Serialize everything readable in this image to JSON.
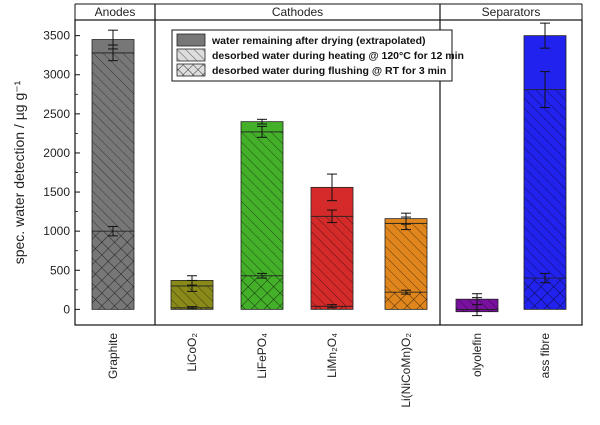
{
  "chart_data": {
    "type": "bar",
    "stacked": true,
    "ylabel": "spec. water detection / µg g⁻¹",
    "ylim": [
      -200,
      3700
    ],
    "yticks": [
      0,
      500,
      1000,
      1500,
      2000,
      2500,
      3000,
      3500
    ],
    "grid": false,
    "legend_position": "top-center",
    "groups": [
      {
        "label": "Anodes",
        "categories": [
          "Graphite"
        ]
      },
      {
        "label": "Cathodes",
        "categories": [
          "LiCoO₂",
          "LiFePO₄",
          "LiMn₂O₄",
          "Li(NiCoMn)O₂"
        ]
      },
      {
        "label": "Separators",
        "categories": [
          "Polyolefin",
          "Glass fibre"
        ]
      }
    ],
    "categories": [
      "Graphite",
      "LiCoO₂",
      "LiFePO₄",
      "LiMn₂O₄",
      "Li(NiCoMn)O₂",
      "Polyolefin",
      "Glass fibre"
    ],
    "category_labels_shown": [
      "Graphite",
      "LiCoO₂",
      "LiFePO₄",
      "LiMn₂O₄",
      "Li(NiCoMn)O₂",
      "olyolefin",
      "ass fibre"
    ],
    "colors": [
      "#777777",
      "#8a8a1a",
      "#44b02a",
      "#d42a2a",
      "#e0861c",
      "#7a10a0",
      "#2222ee"
    ],
    "series": [
      {
        "name": "desorbed water during flushing @ RT for 3 min",
        "pattern": "crosshatch",
        "values": [
          1000,
          20,
          430,
          40,
          220,
          -30,
          400
        ],
        "errors": [
          60,
          15,
          30,
          20,
          25,
          0,
          60
        ]
      },
      {
        "name": "desorbed water during heating @ 120°C for 12 min",
        "pattern": "diagonal",
        "values": [
          2280,
          280,
          1840,
          1150,
          880,
          130,
          2410
        ],
        "errors": [
          100,
          70,
          70,
          80,
          80,
          70,
          230
        ]
      },
      {
        "name": "water remaining after drying (extrapolated)",
        "pattern": "solid",
        "values": [
          170,
          70,
          130,
          370,
          60,
          0,
          690
        ],
        "errors": [
          120,
          60,
          30,
          170,
          70,
          0,
          160
        ]
      }
    ],
    "legend_order": [
      2,
      1,
      0
    ]
  }
}
